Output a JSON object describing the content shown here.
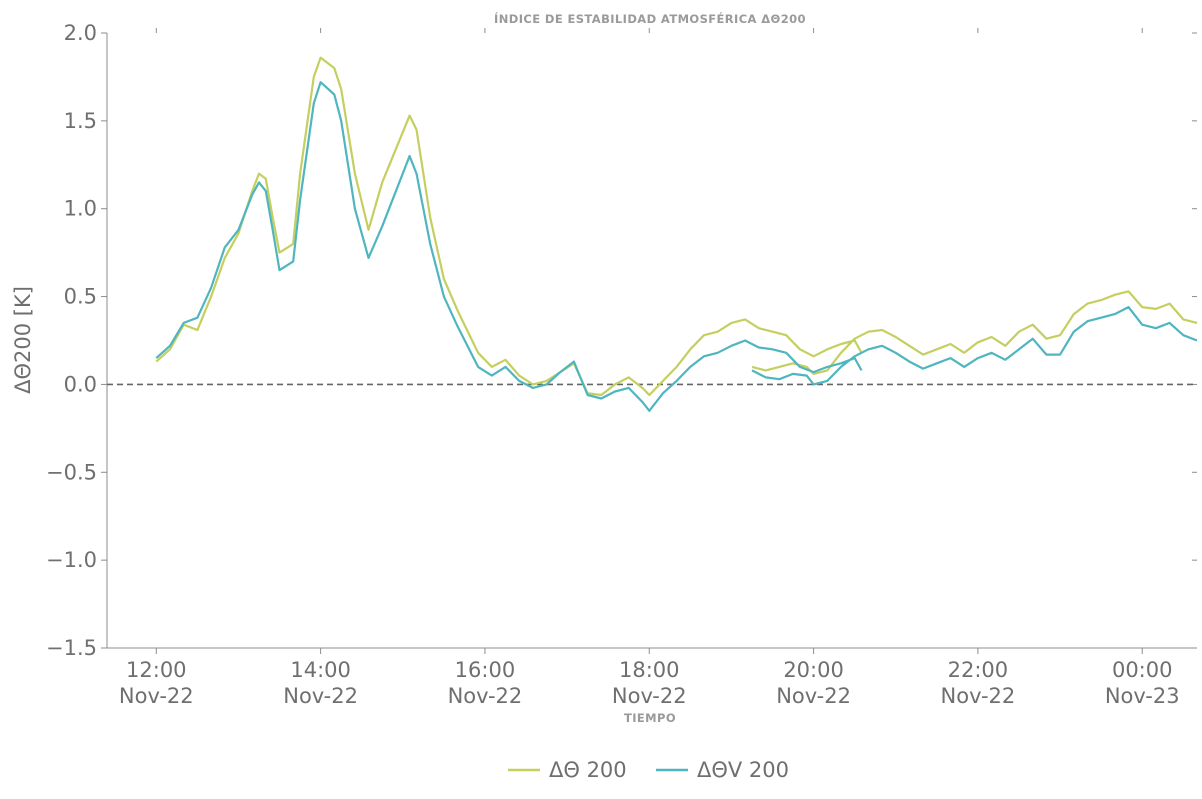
{
  "chart_data": {
    "type": "line",
    "title": "ÍNDICE DE ESTABILIDAD ATMOSFÉRICA ΔΘ200",
    "xlabel": "TIEMPO",
    "ylabel": "ΔΘ200 [K]",
    "ylim": [
      -1.5,
      2.0
    ],
    "yticks": [
      -1.5,
      -1.0,
      -0.5,
      0.0,
      0.5,
      1.0,
      1.5,
      2.0
    ],
    "ytick_labels": [
      "−1.5",
      "−1.0",
      "−0.5",
      "0.0",
      "0.5",
      "1.0",
      "1.5",
      "2.0"
    ],
    "xlim": [
      "2022-11-22 11:24",
      "2022-11-23 00:40"
    ],
    "xticks": [
      "2022-11-22 12:00",
      "2022-11-22 14:00",
      "2022-11-22 16:00",
      "2022-11-22 18:00",
      "2022-11-22 20:00",
      "2022-11-22 22:00",
      "2022-11-23 00:00"
    ],
    "xtick_labels": [
      [
        "12:00",
        "Nov-22"
      ],
      [
        "14:00",
        "Nov-22"
      ],
      [
        "16:00",
        "Nov-22"
      ],
      [
        "18:00",
        "Nov-22"
      ],
      [
        "20:00",
        "Nov-22"
      ],
      [
        "22:00",
        "Nov-22"
      ],
      [
        "00:00",
        "Nov-23"
      ]
    ],
    "reference_line": {
      "y": 0.0,
      "style": "dashed",
      "color": "#666666"
    },
    "legend": {
      "placement": "bottom-center"
    },
    "grid": false,
    "series": [
      {
        "name": "ΔΘ 200",
        "color": "#c5cf5f",
        "points": [
          [
            "2022-11-22 12:00",
            0.13
          ],
          [
            "2022-11-22 12:10",
            0.2
          ],
          [
            "2022-11-22 12:20",
            0.34
          ],
          [
            "2022-11-22 12:30",
            0.31
          ],
          [
            "2022-11-22 12:40",
            0.5
          ],
          [
            "2022-11-22 12:50",
            0.72
          ],
          [
            "2022-11-22 13:00",
            0.86
          ],
          [
            "2022-11-22 13:10",
            1.1
          ],
          [
            "2022-11-22 13:15",
            1.2
          ],
          [
            "2022-11-22 13:20",
            1.17
          ],
          [
            "2022-11-22 13:25",
            0.95
          ],
          [
            "2022-11-22 13:30",
            0.75
          ],
          [
            "2022-11-22 13:40",
            0.8
          ],
          [
            "2022-11-22 13:45",
            1.2
          ],
          [
            "2022-11-22 13:55",
            1.75
          ],
          [
            "2022-11-22 14:00",
            1.86
          ],
          [
            "2022-11-22 14:10",
            1.8
          ],
          [
            "2022-11-22 14:15",
            1.68
          ],
          [
            "2022-11-22 14:25",
            1.2
          ],
          [
            "2022-11-22 14:35",
            0.88
          ],
          [
            "2022-11-22 14:45",
            1.15
          ],
          [
            "2022-11-22 15:05",
            1.53
          ],
          [
            "2022-11-22 15:10",
            1.45
          ],
          [
            "2022-11-22 15:20",
            0.95
          ],
          [
            "2022-11-22 15:30",
            0.6
          ],
          [
            "2022-11-22 15:40",
            0.42
          ],
          [
            "2022-11-22 15:55",
            0.18
          ],
          [
            "2022-11-22 16:05",
            0.1
          ],
          [
            "2022-11-22 16:15",
            0.14
          ],
          [
            "2022-11-22 16:25",
            0.05
          ],
          [
            "2022-11-22 16:35",
            0.0
          ],
          [
            "2022-11-22 16:45",
            0.02
          ],
          [
            "2022-11-22 16:55",
            0.07
          ],
          [
            "2022-11-22 17:05",
            0.12
          ],
          [
            "2022-11-22 17:15",
            -0.05
          ],
          [
            "2022-11-22 17:25",
            -0.06
          ],
          [
            "2022-11-22 17:35",
            0.0
          ],
          [
            "2022-11-22 17:45",
            0.04
          ],
          [
            "2022-11-22 17:55",
            -0.02
          ],
          [
            "2022-11-22 18:00",
            -0.06
          ],
          [
            "2022-11-22 18:10",
            0.02
          ],
          [
            "2022-11-22 18:20",
            0.1
          ],
          [
            "2022-11-22 18:30",
            0.2
          ],
          [
            "2022-11-22 18:40",
            0.28
          ],
          [
            "2022-11-22 18:50",
            0.3
          ],
          [
            "2022-11-22 19:00",
            0.35
          ],
          [
            "2022-11-22 19:10",
            0.37
          ],
          [
            "2022-11-22 19:20",
            0.32
          ],
          [
            "2022-11-22 19:30",
            0.3
          ],
          [
            "2022-11-22 19:40",
            0.28
          ],
          [
            "2022-11-22 19:50",
            0.2
          ],
          [
            "2022-11-22 20:00",
            0.16
          ],
          [
            "2022-11-22 20:10",
            0.2
          ],
          [
            "2022-11-22 20:20",
            0.23
          ],
          [
            "2022-11-22 20:30",
            0.25
          ],
          [
            "2022-11-22 20:35",
            0.18
          ],
          null,
          [
            "2022-11-22 19:15",
            0.1
          ],
          [
            "2022-11-22 19:25",
            0.08
          ],
          [
            "2022-11-22 19:35",
            0.1
          ],
          [
            "2022-11-22 19:45",
            0.12
          ],
          [
            "2022-11-22 19:55",
            0.1
          ],
          [
            "2022-11-22 20:00",
            0.06
          ],
          [
            "2022-11-22 20:10",
            0.08
          ],
          [
            "2022-11-22 20:20",
            0.18
          ],
          [
            "2022-11-22 20:30",
            0.26
          ],
          [
            "2022-11-22 20:40",
            0.3
          ],
          [
            "2022-11-22 20:50",
            0.31
          ],
          [
            "2022-11-22 21:00",
            0.27
          ],
          [
            "2022-11-22 21:10",
            0.22
          ],
          [
            "2022-11-22 21:20",
            0.17
          ],
          [
            "2022-11-22 21:30",
            0.2
          ],
          [
            "2022-11-22 21:40",
            0.23
          ],
          [
            "2022-11-22 21:50",
            0.18
          ],
          [
            "2022-11-22 22:00",
            0.24
          ],
          [
            "2022-11-22 22:10",
            0.27
          ],
          [
            "2022-11-22 22:20",
            0.22
          ],
          [
            "2022-11-22 22:30",
            0.3
          ],
          [
            "2022-11-22 22:40",
            0.34
          ],
          [
            "2022-11-22 22:50",
            0.26
          ],
          [
            "2022-11-22 23:00",
            0.28
          ],
          [
            "2022-11-22 23:10",
            0.4
          ],
          [
            "2022-11-22 23:20",
            0.46
          ],
          [
            "2022-11-22 23:30",
            0.48
          ],
          [
            "2022-11-22 23:40",
            0.51
          ],
          [
            "2022-11-22 23:50",
            0.53
          ],
          [
            "2022-11-23 00:00",
            0.44
          ],
          [
            "2022-11-23 00:10",
            0.43
          ],
          [
            "2022-11-23 00:20",
            0.46
          ],
          [
            "2022-11-23 00:30",
            0.37
          ],
          [
            "2022-11-23 00:40",
            0.35
          ]
        ]
      },
      {
        "name": "ΔΘV 200",
        "color": "#4fb5bf",
        "points": [
          [
            "2022-11-22 12:00",
            0.15
          ],
          [
            "2022-11-22 12:10",
            0.22
          ],
          [
            "2022-11-22 12:20",
            0.35
          ],
          [
            "2022-11-22 12:30",
            0.38
          ],
          [
            "2022-11-22 12:40",
            0.55
          ],
          [
            "2022-11-22 12:50",
            0.78
          ],
          [
            "2022-11-22 13:00",
            0.88
          ],
          [
            "2022-11-22 13:10",
            1.08
          ],
          [
            "2022-11-22 13:15",
            1.15
          ],
          [
            "2022-11-22 13:20",
            1.1
          ],
          [
            "2022-11-22 13:25",
            0.88
          ],
          [
            "2022-11-22 13:30",
            0.65
          ],
          [
            "2022-11-22 13:40",
            0.7
          ],
          [
            "2022-11-22 13:45",
            1.05
          ],
          [
            "2022-11-22 13:55",
            1.6
          ],
          [
            "2022-11-22 14:00",
            1.72
          ],
          [
            "2022-11-22 14:10",
            1.65
          ],
          [
            "2022-11-22 14:15",
            1.5
          ],
          [
            "2022-11-22 14:25",
            1.0
          ],
          [
            "2022-11-22 14:35",
            0.72
          ],
          [
            "2022-11-22 14:45",
            0.9
          ],
          [
            "2022-11-22 15:05",
            1.3
          ],
          [
            "2022-11-22 15:10",
            1.2
          ],
          [
            "2022-11-22 15:20",
            0.8
          ],
          [
            "2022-11-22 15:30",
            0.5
          ],
          [
            "2022-11-22 15:40",
            0.33
          ],
          [
            "2022-11-22 15:55",
            0.1
          ],
          [
            "2022-11-22 16:05",
            0.05
          ],
          [
            "2022-11-22 16:15",
            0.1
          ],
          [
            "2022-11-22 16:25",
            0.02
          ],
          [
            "2022-11-22 16:35",
            -0.02
          ],
          [
            "2022-11-22 16:45",
            0.0
          ],
          [
            "2022-11-22 16:55",
            0.07
          ],
          [
            "2022-11-22 17:05",
            0.13
          ],
          [
            "2022-11-22 17:15",
            -0.06
          ],
          [
            "2022-11-22 17:25",
            -0.08
          ],
          [
            "2022-11-22 17:35",
            -0.04
          ],
          [
            "2022-11-22 17:45",
            -0.02
          ],
          [
            "2022-11-22 17:55",
            -0.1
          ],
          [
            "2022-11-22 18:00",
            -0.15
          ],
          [
            "2022-11-22 18:10",
            -0.05
          ],
          [
            "2022-11-22 18:20",
            0.02
          ],
          [
            "2022-11-22 18:30",
            0.1
          ],
          [
            "2022-11-22 18:40",
            0.16
          ],
          [
            "2022-11-22 18:50",
            0.18
          ],
          [
            "2022-11-22 19:00",
            0.22
          ],
          [
            "2022-11-22 19:10",
            0.25
          ],
          [
            "2022-11-22 19:20",
            0.21
          ],
          [
            "2022-11-22 19:30",
            0.2
          ],
          [
            "2022-11-22 19:40",
            0.18
          ],
          [
            "2022-11-22 19:50",
            0.1
          ],
          [
            "2022-11-22 20:00",
            0.07
          ],
          [
            "2022-11-22 20:10",
            0.1
          ],
          [
            "2022-11-22 20:20",
            0.12
          ],
          [
            "2022-11-22 20:30",
            0.15
          ],
          [
            "2022-11-22 20:35",
            0.08
          ],
          null,
          [
            "2022-11-22 19:15",
            0.08
          ],
          [
            "2022-11-22 19:25",
            0.04
          ],
          [
            "2022-11-22 19:35",
            0.03
          ],
          [
            "2022-11-22 19:45",
            0.06
          ],
          [
            "2022-11-22 19:55",
            0.05
          ],
          [
            "2022-11-22 20:00",
            0.0
          ],
          [
            "2022-11-22 20:10",
            0.02
          ],
          [
            "2022-11-22 20:20",
            0.1
          ],
          [
            "2022-11-22 20:30",
            0.16
          ],
          [
            "2022-11-22 20:40",
            0.2
          ],
          [
            "2022-11-22 20:50",
            0.22
          ],
          [
            "2022-11-22 21:00",
            0.18
          ],
          [
            "2022-11-22 21:10",
            0.13
          ],
          [
            "2022-11-22 21:20",
            0.09
          ],
          [
            "2022-11-22 21:30",
            0.12
          ],
          [
            "2022-11-22 21:40",
            0.15
          ],
          [
            "2022-11-22 21:50",
            0.1
          ],
          [
            "2022-11-22 22:00",
            0.15
          ],
          [
            "2022-11-22 22:10",
            0.18
          ],
          [
            "2022-11-22 22:20",
            0.14
          ],
          [
            "2022-11-22 22:30",
            0.2
          ],
          [
            "2022-11-22 22:40",
            0.26
          ],
          [
            "2022-11-22 22:50",
            0.17
          ],
          [
            "2022-11-22 23:00",
            0.17
          ],
          [
            "2022-11-22 23:10",
            0.3
          ],
          [
            "2022-11-22 23:20",
            0.36
          ],
          [
            "2022-11-22 23:30",
            0.38
          ],
          [
            "2022-11-22 23:40",
            0.4
          ],
          [
            "2022-11-22 23:50",
            0.44
          ],
          [
            "2022-11-23 00:00",
            0.34
          ],
          [
            "2022-11-23 00:10",
            0.32
          ],
          [
            "2022-11-23 00:20",
            0.35
          ],
          [
            "2022-11-23 00:30",
            0.28
          ],
          [
            "2022-11-23 00:40",
            0.25
          ]
        ]
      }
    ]
  }
}
